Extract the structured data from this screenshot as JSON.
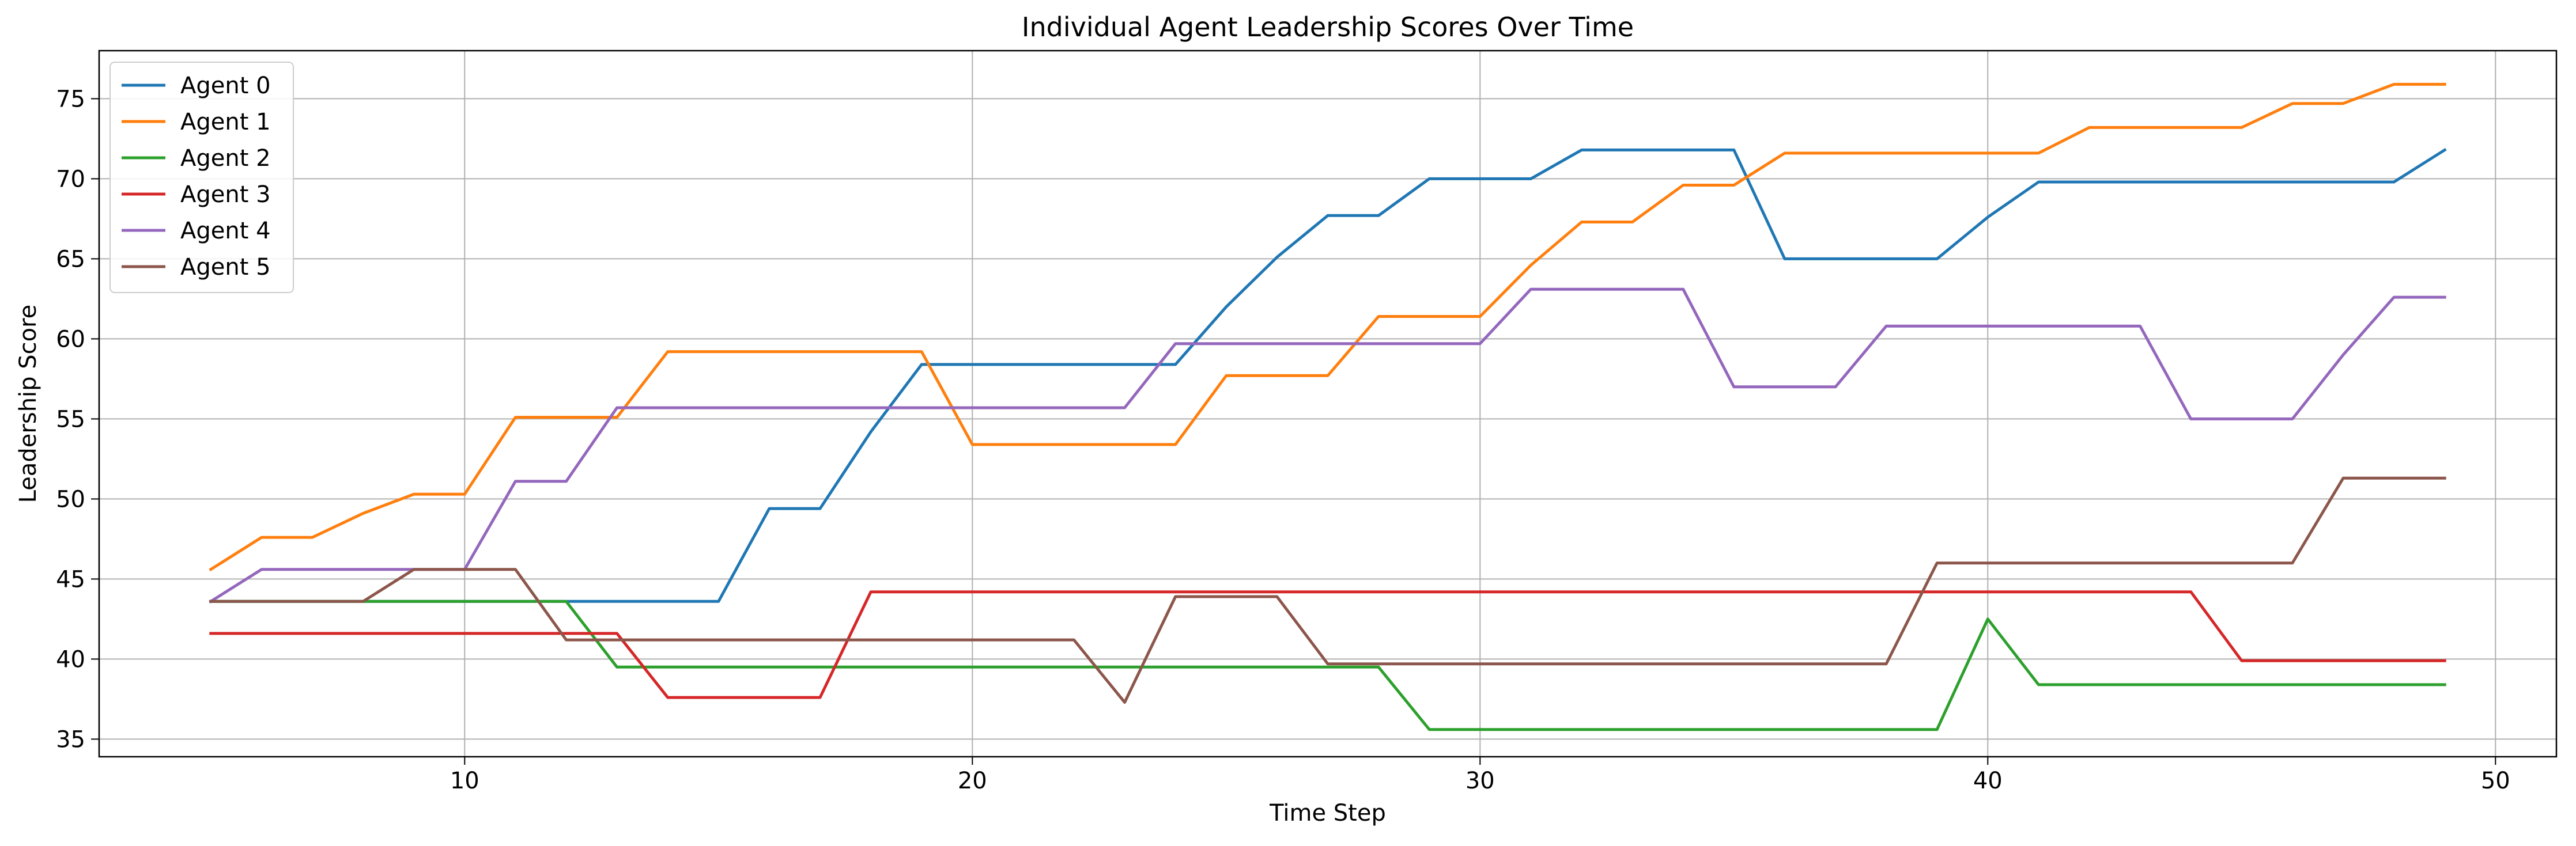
{
  "chart_data": {
    "type": "line",
    "title": "Individual Agent Leadership Scores Over Time",
    "xlabel": "Time Step",
    "ylabel": "Leadership Score",
    "xlim": [
      2.8,
      51.2
    ],
    "ylim": [
      33.9,
      78.0
    ],
    "xticks": [
      10,
      20,
      30,
      40,
      50
    ],
    "yticks": [
      35,
      40,
      45,
      50,
      55,
      60,
      65,
      70,
      75
    ],
    "grid": true,
    "legend_position": "upper-left",
    "x": [
      5,
      6,
      7,
      8,
      9,
      10,
      11,
      12,
      13,
      14,
      15,
      16,
      17,
      18,
      19,
      20,
      21,
      22,
      23,
      24,
      25,
      26,
      27,
      28,
      29,
      30,
      31,
      32,
      33,
      34,
      35,
      36,
      37,
      38,
      39,
      40,
      41,
      42,
      43,
      44,
      45,
      46,
      47,
      48,
      49
    ],
    "series": [
      {
        "name": "Agent 0",
        "color": "#1f77b4",
        "values": [
          43.6,
          43.6,
          43.6,
          43.6,
          43.6,
          43.6,
          43.6,
          43.6,
          43.6,
          43.6,
          43.6,
          49.4,
          49.4,
          54.2,
          58.4,
          58.4,
          58.4,
          58.4,
          58.4,
          58.4,
          62.0,
          65.1,
          67.7,
          67.7,
          70.0,
          70.0,
          70.0,
          71.8,
          71.8,
          71.8,
          71.8,
          65.0,
          65.0,
          65.0,
          65.0,
          67.6,
          69.8,
          69.8,
          69.8,
          69.8,
          69.8,
          69.8,
          69.8,
          69.8,
          71.8
        ]
      },
      {
        "name": "Agent 1",
        "color": "#ff7f0e",
        "values": [
          45.6,
          47.6,
          47.6,
          49.1,
          50.3,
          50.3,
          55.1,
          55.1,
          55.1,
          59.2,
          59.2,
          59.2,
          59.2,
          59.2,
          59.2,
          53.4,
          53.4,
          53.4,
          53.4,
          53.4,
          57.7,
          57.7,
          57.7,
          61.4,
          61.4,
          61.4,
          64.6,
          67.3,
          67.3,
          69.6,
          69.6,
          71.6,
          71.6,
          71.6,
          71.6,
          71.6,
          71.6,
          73.2,
          73.2,
          73.2,
          73.2,
          74.7,
          74.7,
          75.9,
          75.9
        ]
      },
      {
        "name": "Agent 2",
        "color": "#2ca02c",
        "values": [
          43.6,
          43.6,
          43.6,
          43.6,
          43.6,
          43.6,
          43.6,
          43.6,
          39.5,
          39.5,
          39.5,
          39.5,
          39.5,
          39.5,
          39.5,
          39.5,
          39.5,
          39.5,
          39.5,
          39.5,
          39.5,
          39.5,
          39.5,
          39.5,
          35.6,
          35.6,
          35.6,
          35.6,
          35.6,
          35.6,
          35.6,
          35.6,
          35.6,
          35.6,
          35.6,
          42.5,
          38.4,
          38.4,
          38.4,
          38.4,
          38.4,
          38.4,
          38.4,
          38.4,
          38.4
        ]
      },
      {
        "name": "Agent 3",
        "color": "#d62728",
        "values": [
          41.6,
          41.6,
          41.6,
          41.6,
          41.6,
          41.6,
          41.6,
          41.6,
          41.6,
          37.6,
          37.6,
          37.6,
          37.6,
          44.2,
          44.2,
          44.2,
          44.2,
          44.2,
          44.2,
          44.2,
          44.2,
          44.2,
          44.2,
          44.2,
          44.2,
          44.2,
          44.2,
          44.2,
          44.2,
          44.2,
          44.2,
          44.2,
          44.2,
          44.2,
          44.2,
          44.2,
          44.2,
          44.2,
          44.2,
          44.2,
          39.9,
          39.9,
          39.9,
          39.9,
          39.9
        ]
      },
      {
        "name": "Agent 4",
        "color": "#9467bd",
        "values": [
          43.6,
          45.6,
          45.6,
          45.6,
          45.6,
          45.6,
          51.1,
          51.1,
          55.7,
          55.7,
          55.7,
          55.7,
          55.7,
          55.7,
          55.7,
          55.7,
          55.7,
          55.7,
          55.7,
          59.7,
          59.7,
          59.7,
          59.7,
          59.7,
          59.7,
          59.7,
          63.1,
          63.1,
          63.1,
          63.1,
          57.0,
          57.0,
          57.0,
          60.8,
          60.8,
          60.8,
          60.8,
          60.8,
          60.8,
          55.0,
          55.0,
          55.0,
          59.0,
          62.6,
          62.6
        ]
      },
      {
        "name": "Agent 5",
        "color": "#8c564b",
        "values": [
          43.6,
          43.6,
          43.6,
          43.6,
          45.6,
          45.6,
          45.6,
          41.2,
          41.2,
          41.2,
          41.2,
          41.2,
          41.2,
          41.2,
          41.2,
          41.2,
          41.2,
          41.2,
          37.3,
          43.9,
          43.9,
          43.9,
          39.7,
          39.7,
          39.7,
          39.7,
          39.7,
          39.7,
          39.7,
          39.7,
          39.7,
          39.7,
          39.7,
          39.7,
          46.0,
          46.0,
          46.0,
          46.0,
          46.0,
          46.0,
          46.0,
          46.0,
          51.3,
          51.3,
          51.3
        ]
      }
    ]
  }
}
